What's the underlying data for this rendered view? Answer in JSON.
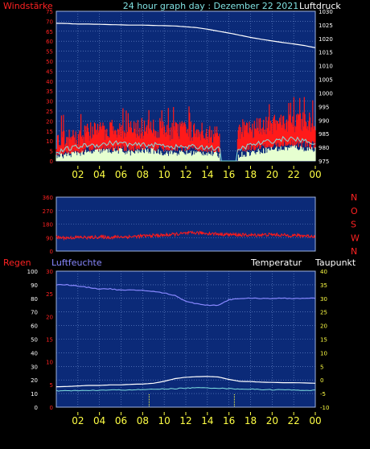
{
  "header": {
    "left_label": "Windstärke",
    "title": "24 hour graph day : Dezember 22 2021",
    "right_label": "Luftdruck"
  },
  "colors": {
    "plot_bg": "#0b2a78",
    "grid": "#6f8fcf",
    "wind": "#ff1a1a",
    "gust_cyan": "#7fe0e0",
    "pale": "#e6ffd0",
    "pressure": "#ffffff",
    "red_text": "#ff2222",
    "x_tick": "#ffff44",
    "white": "#ffffff",
    "purple": "#8888ff"
  },
  "x_ticks": [
    "02",
    "04",
    "06",
    "08",
    "10",
    "12",
    "14",
    "16",
    "18",
    "20",
    "22",
    "00"
  ],
  "chart_data": [
    {
      "type": "line",
      "id": "wind_pressure",
      "x_range_hours": [
        0,
        24
      ],
      "left_axis": {
        "label": "Windstärke",
        "ticks": [
          0,
          5,
          10,
          15,
          20,
          25,
          30,
          35,
          40,
          45,
          50,
          55,
          60,
          65,
          70,
          75
        ]
      },
      "right_axis": {
        "label": "Luftdruck",
        "ticks": [
          975,
          980,
          985,
          990,
          995,
          1000,
          1005,
          1010,
          1015,
          1020,
          1025,
          1030
        ]
      },
      "series": [
        {
          "name": "Luftdruck",
          "axis": "right",
          "x": [
            0,
            1,
            2,
            3,
            4,
            5,
            6,
            7,
            8,
            9,
            10,
            11,
            12,
            13,
            14,
            15,
            16,
            17,
            18,
            19,
            20,
            21,
            22,
            23,
            24
          ],
          "values": [
            1025.6,
            1025.5,
            1025.3,
            1025.3,
            1025.2,
            1025.1,
            1025.0,
            1024.9,
            1024.9,
            1024.8,
            1024.7,
            1024.6,
            1024.3,
            1024.0,
            1023.4,
            1022.7,
            1022.0,
            1021.2,
            1020.4,
            1019.7,
            1019.1,
            1018.5,
            1018.0,
            1017.4,
            1016.6
          ]
        },
        {
          "axis": "left",
          "x": [
            0,
            1,
            2,
            3,
            4,
            5,
            6,
            7,
            8,
            9,
            10,
            11,
            12,
            13,
            14,
            15,
            16,
            17,
            18,
            19,
            20,
            21,
            22,
            23,
            24
          ],
          "values": [
            8,
            9,
            10,
            13,
            13,
            14,
            14,
            13,
            14,
            14,
            13,
            13,
            13,
            13,
            12,
            11,
            0,
            12,
            14,
            15,
            16,
            18,
            17,
            18,
            17
          ]
        },
        {
          "axis": "left",
          "x": [
            0,
            1,
            2,
            3,
            4,
            5,
            6,
            7,
            8,
            9,
            10,
            11,
            12,
            13,
            14,
            15,
            16,
            17,
            18,
            19,
            20,
            21,
            22,
            23,
            24
          ],
          "values": [
            4,
            6,
            7,
            8,
            8,
            9,
            9,
            8,
            8,
            8,
            8,
            7,
            7,
            7,
            7,
            6,
            0,
            6,
            8,
            9,
            10,
            11,
            11,
            10,
            9
          ]
        },
        {
          "axis": "left",
          "x": [
            0,
            1,
            2,
            3,
            4,
            5,
            6,
            7,
            8,
            9,
            10,
            11,
            12,
            13,
            14,
            15,
            16,
            17,
            18,
            19,
            20,
            21,
            22,
            23,
            24
          ],
          "values": [
            2,
            3,
            4,
            4,
            5,
            5,
            5,
            4,
            5,
            5,
            4,
            4,
            4,
            4,
            4,
            3,
            0,
            3,
            4,
            5,
            6,
            6,
            7,
            6,
            6
          ]
        }
      ]
    },
    {
      "type": "line",
      "id": "wind_direction",
      "x_range_hours": [
        0,
        24
      ],
      "left_axis": {
        "ticks": [
          0,
          90,
          180,
          270,
          360
        ]
      },
      "right_axis": {
        "ticks": [
          "N",
          "W",
          "S",
          "O",
          "N"
        ]
      },
      "series": [
        {
          "x": [
            0,
            1,
            2,
            3,
            4,
            5,
            6,
            7,
            8,
            9,
            10,
            11,
            12,
            13,
            14,
            15,
            16,
            17,
            18,
            19,
            20,
            21,
            22,
            23,
            24
          ],
          "values": [
            90,
            88,
            92,
            90,
            94,
            92,
            95,
            96,
            100,
            104,
            106,
            112,
            118,
            122,
            118,
            114,
            110,
            108,
            106,
            108,
            110,
            106,
            104,
            102,
            98
          ]
        }
      ]
    },
    {
      "type": "line",
      "id": "humidity_temp",
      "x_range_hours": [
        0,
        24
      ],
      "labels": {
        "rain": "Regen",
        "humidity": "Luftfeuchte",
        "temperature": "Temperatur",
        "dewpoint": "Taupunkt"
      },
      "left_axis": {
        "label": "Luftfeuchte",
        "ticks": [
          0,
          10,
          20,
          30,
          40,
          50,
          60,
          70,
          80,
          90,
          100
        ]
      },
      "rain_axis": {
        "label": "Regen",
        "ticks": [
          0,
          5,
          10,
          15,
          20,
          25,
          30
        ]
      },
      "right_axis": {
        "label": "Temperatur",
        "ticks": [
          -10,
          -5,
          0,
          5,
          10,
          15,
          20,
          25,
          30,
          35,
          40
        ]
      },
      "series": [
        {
          "name": "Luftfeuchte",
          "axis": "left",
          "x": [
            0,
            1,
            2,
            3,
            4,
            5,
            6,
            7,
            8,
            9,
            10,
            11,
            12,
            13,
            14,
            15,
            16,
            17,
            18,
            19,
            20,
            21,
            22,
            23,
            24
          ],
          "values": [
            90,
            90,
            89,
            88,
            87,
            87,
            86,
            86,
            86,
            85,
            84,
            82,
            78,
            76,
            75,
            75,
            79,
            80,
            80,
            80,
            80,
            80,
            80,
            80,
            80
          ]
        },
        {
          "name": "Temperatur",
          "axis": "right",
          "x": [
            0,
            1,
            2,
            3,
            4,
            5,
            6,
            7,
            8,
            9,
            10,
            11,
            12,
            13,
            14,
            15,
            16,
            17,
            18,
            19,
            20,
            21,
            22,
            23,
            24
          ],
          "values": [
            -2.5,
            -2.4,
            -2.2,
            -2.0,
            -2.0,
            -1.8,
            -1.8,
            -1.6,
            -1.5,
            -1.2,
            -0.5,
            0.5,
            1.0,
            1.2,
            1.3,
            1.1,
            0.2,
            -0.5,
            -0.6,
            -0.8,
            -0.9,
            -1.0,
            -1.0,
            -1.1,
            -1.2
          ]
        },
        {
          "name": "Taupunkt",
          "axis": "right",
          "x": [
            0,
            1,
            2,
            3,
            4,
            5,
            6,
            7,
            8,
            9,
            10,
            11,
            12,
            13,
            14,
            15,
            16,
            17,
            18,
            19,
            20,
            21,
            22,
            23,
            24
          ],
          "values": [
            -4.0,
            -4.0,
            -3.9,
            -3.9,
            -3.8,
            -3.7,
            -3.7,
            -3.6,
            -3.6,
            -3.4,
            -3.3,
            -3.2,
            -3.0,
            -2.9,
            -2.9,
            -3.0,
            -3.2,
            -3.3,
            -3.4,
            -3.5,
            -3.6,
            -3.6,
            -3.7,
            -3.8,
            -3.8
          ]
        }
      ],
      "markers_hours": [
        8.6,
        16.5
      ]
    }
  ]
}
